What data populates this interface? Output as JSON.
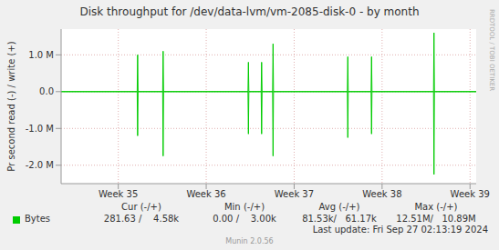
{
  "chart_data": {
    "type": "line",
    "title": "Disk throughput for /dev/data-lvm/vm-2085-disk-0 - by month",
    "y_label": "Pr second read (-) / write (+)",
    "x": [
      34.35,
      35.215,
      35.22,
      35.225,
      35.505,
      35.51,
      35.515,
      36.475,
      36.48,
      36.485,
      36.625,
      36.63,
      36.635,
      36.755,
      36.76,
      36.765,
      37.605,
      37.61,
      37.615,
      37.875,
      37.88,
      37.885,
      38.585,
      38.59,
      38.595,
      39.07
    ],
    "series": [
      {
        "name": "Bytes",
        "color": "#00cc00",
        "values": [
          0,
          0,
          1000000,
          0,
          0,
          1100000,
          0,
          0,
          800000,
          0,
          0,
          800000,
          0,
          0,
          1300000,
          0,
          0,
          950000,
          0,
          0,
          950000,
          0,
          0,
          1600000,
          0,
          0
        ],
        "read": [
          0,
          0,
          -1200000,
          0,
          0,
          -1750000,
          0,
          0,
          -1150000,
          0,
          0,
          -1150000,
          0,
          0,
          -1750000,
          0,
          0,
          -1250000,
          0,
          0,
          -1150000,
          0,
          0,
          -2250000,
          0,
          0
        ]
      }
    ],
    "xlim": [
      34.35,
      39.07
    ],
    "xticks": [
      {
        "value": 35,
        "label": "Week 35"
      },
      {
        "value": 36,
        "label": "Week 36"
      },
      {
        "value": 37,
        "label": "Week 37"
      },
      {
        "value": 38,
        "label": "Week 38"
      },
      {
        "value": 39,
        "label": "Week 39"
      }
    ],
    "ylim": [
      -2500000,
      1700000
    ],
    "yticks": [
      {
        "value": -2000000,
        "label": "-2.0 M"
      },
      {
        "value": -1000000,
        "label": "-1.0 M"
      },
      {
        "value": 0,
        "label": "0.0"
      },
      {
        "value": 1000000,
        "label": "1.0 M"
      }
    ],
    "grid": true,
    "stats": {
      "columns": [
        "Cur (-/+)",
        "Min (-/+)",
        "Avg (-/+)",
        "Max (-/+)"
      ],
      "rows": [
        {
          "name": "Bytes",
          "values": [
            "281.63 /    4.58k",
            "0.00 /    3.00k",
            "81.53k/   61.17k",
            "12.51M/   10.89M"
          ]
        }
      ]
    },
    "footer": "Last update: Fri Sep 27 02:13:19 2024",
    "version": "Munin 2.0.56",
    "credit": "RRDTOOL / TOBI OETIKER"
  }
}
